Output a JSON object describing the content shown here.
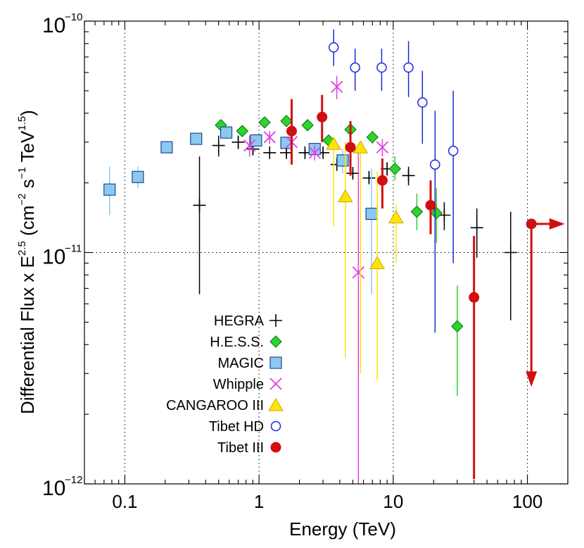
{
  "chart_data": {
    "type": "scatter",
    "xlabel": "Energy (TeV)",
    "ylabel_parts": {
      "main": "Differential Flux x E",
      "exp_main": "2.5",
      "unit_open": " (cm",
      "exp_cm": "−2",
      "s": " s",
      "exp_s": "−1",
      "tev": "  TeV",
      "exp_tev": "1.5",
      "close": ")"
    },
    "x_scale": "log",
    "y_scale": "log",
    "xlim": [
      0.05,
      200
    ],
    "ylim": [
      1e-12,
      1e-10
    ],
    "x_ticks": [
      {
        "value": 0.1,
        "label": "0.1"
      },
      {
        "value": 1,
        "label": "1"
      },
      {
        "value": 10,
        "label": "10"
      },
      {
        "value": 100,
        "label": "100"
      }
    ],
    "y_ticks": [
      {
        "value": 1e-12,
        "base": "10",
        "exp": "−12"
      },
      {
        "value": 1e-11,
        "base": "10",
        "exp": "−11"
      },
      {
        "value": 1e-10,
        "base": "10",
        "exp": "−10"
      }
    ],
    "grid": "dotted at decades",
    "legend_position": "lower-left",
    "series": [
      {
        "name": "HEGRA",
        "marker": "plus",
        "color": "#000000",
        "points": [
          {
            "x": 0.36,
            "y": 1.6e-11,
            "ylo": 6.6e-12,
            "yhi": 2.6e-11
          },
          {
            "x": 0.5,
            "y": 2.9e-11,
            "ylo": 2.6e-11,
            "yhi": 3.2e-11
          },
          {
            "x": 0.7,
            "y": 3e-11,
            "ylo": 2.8e-11,
            "yhi": 3.2e-11
          },
          {
            "x": 0.9,
            "y": 2.8e-11,
            "ylo": 2.65e-11,
            "yhi": 2.95e-11
          },
          {
            "x": 1.2,
            "y": 2.7e-11,
            "ylo": 2.6e-11,
            "yhi": 2.8e-11
          },
          {
            "x": 1.6,
            "y": 2.7e-11,
            "ylo": 2.6e-11,
            "yhi": 2.8e-11
          },
          {
            "x": 2.2,
            "y": 2.7e-11,
            "ylo": 2.6e-11,
            "yhi": 2.8e-11
          },
          {
            "x": 3.0,
            "y": 2.7e-11,
            "ylo": 2.6e-11,
            "yhi": 2.8e-11
          },
          {
            "x": 3.8,
            "y": 2.4e-11,
            "ylo": 2.3e-11,
            "yhi": 2.5e-11
          },
          {
            "x": 5.0,
            "y": 2.2e-11,
            "ylo": 2.1e-11,
            "yhi": 2.3e-11
          },
          {
            "x": 6.6,
            "y": 2.1e-11,
            "ylo": 2e-11,
            "yhi": 2.25e-11
          },
          {
            "x": 9.0,
            "y": 2.3e-11,
            "ylo": 2.15e-11,
            "yhi": 2.45e-11
          },
          {
            "x": 13.0,
            "y": 2.15e-11,
            "ylo": 1.95e-11,
            "yhi": 2.35e-11
          },
          {
            "x": 24.0,
            "y": 1.45e-11,
            "ylo": 1.25e-11,
            "yhi": 1.65e-11
          },
          {
            "x": 42.0,
            "y": 1.28e-11,
            "ylo": 9.5e-12,
            "yhi": 1.55e-11
          },
          {
            "x": 75.0,
            "y": 1e-11,
            "ylo": 5.1e-12,
            "yhi": 1.5e-11
          }
        ]
      },
      {
        "name": "H.E.S.S.",
        "marker": "diamond",
        "color": "#2ad62a",
        "points": [
          {
            "x": 0.52,
            "y": 3.55e-11
          },
          {
            "x": 0.75,
            "y": 3.35e-11
          },
          {
            "x": 1.1,
            "y": 3.65e-11
          },
          {
            "x": 1.6,
            "y": 3.7e-11
          },
          {
            "x": 2.3,
            "y": 3.55e-11
          },
          {
            "x": 3.3,
            "y": 3.05e-11
          },
          {
            "x": 4.8,
            "y": 3.4e-11
          },
          {
            "x": 7.0,
            "y": 3.15e-11,
            "ylo": 2.95e-11,
            "yhi": 3.35e-11
          },
          {
            "x": 10.3,
            "y": 2.3e-11,
            "ylo": 2.05e-11,
            "yhi": 2.6e-11
          },
          {
            "x": 15.0,
            "y": 1.5e-11,
            "ylo": 1.25e-11,
            "yhi": 1.8e-11
          },
          {
            "x": 21.0,
            "y": 1.48e-11,
            "ylo": 1.1e-11,
            "yhi": 1.9e-11
          },
          {
            "x": 30.0,
            "y": 4.8e-12,
            "ylo": 2.4e-12,
            "yhi": 7.2e-12
          }
        ]
      },
      {
        "name": "MAGIC",
        "marker": "square",
        "color": "#8cc8f0",
        "points": [
          {
            "x": 0.077,
            "y": 1.87e-11,
            "ylo": 1.45e-11,
            "yhi": 2.35e-11
          },
          {
            "x": 0.125,
            "y": 2.12e-11,
            "ylo": 1.9e-11,
            "yhi": 2.35e-11
          },
          {
            "x": 0.205,
            "y": 2.85e-11
          },
          {
            "x": 0.34,
            "y": 3.1e-11
          },
          {
            "x": 0.57,
            "y": 3.3e-11
          },
          {
            "x": 0.95,
            "y": 3.05e-11
          },
          {
            "x": 1.6,
            "y": 2.98e-11
          },
          {
            "x": 2.6,
            "y": 2.8e-11
          },
          {
            "x": 4.2,
            "y": 2.5e-11,
            "ylo": 2.2e-11,
            "yhi": 2.8e-11
          },
          {
            "x": 6.9,
            "y": 1.47e-11,
            "ylo": 6.6e-12,
            "yhi": 2.3e-11
          }
        ]
      },
      {
        "name": "Whipple",
        "marker": "cross",
        "color": "#e040e0",
        "points": [
          {
            "x": 0.85,
            "y": 2.9e-11,
            "ylo": 2.6e-11,
            "yhi": 3.2e-11
          },
          {
            "x": 1.2,
            "y": 3.15e-11,
            "ylo": 2.95e-11,
            "yhi": 3.35e-11
          },
          {
            "x": 1.75,
            "y": 3e-11,
            "ylo": 2.8e-11,
            "yhi": 3.2e-11
          },
          {
            "x": 2.6,
            "y": 2.7e-11,
            "ylo": 2.5e-11,
            "yhi": 2.9e-11
          },
          {
            "x": 3.8,
            "y": 5.2e-11,
            "ylo": 4.6e-11,
            "yhi": 5.8e-11
          },
          {
            "x": 5.5,
            "y": 8.2e-12,
            "ylo": 1e-12,
            "yhi": 2.7e-11
          },
          {
            "x": 8.3,
            "y": 2.85e-11,
            "ylo": 2.6e-11,
            "yhi": 3.1e-11
          }
        ]
      },
      {
        "name": "CANGAROO III",
        "marker": "triangle",
        "color": "#ffe400",
        "points": [
          {
            "x": 3.6,
            "y": 2.95e-11,
            "ylo": 1.3e-11,
            "yhi": 3.1e-11
          },
          {
            "x": 4.4,
            "y": 1.75e-11,
            "ylo": 3.5e-12,
            "yhi": 3e-11
          },
          {
            "x": 5.7,
            "y": 2.85e-11,
            "ylo": 3e-12,
            "yhi": 3e-11
          },
          {
            "x": 7.6,
            "y": 9e-12,
            "ylo": 2.8e-12,
            "yhi": 2.25e-11
          },
          {
            "x": 10.5,
            "y": 1.42e-11,
            "ylo": 9e-12,
            "yhi": 1.6e-11
          }
        ]
      },
      {
        "name": "Tibet HD",
        "marker": "circle-open",
        "color": "#1a2ad8",
        "points": [
          {
            "x": 3.6,
            "y": 7.7e-11,
            "ylo": 6.4e-11,
            "yhi": 9.2e-11
          },
          {
            "x": 5.2,
            "y": 6.3e-11,
            "ylo": 5e-11,
            "yhi": 7.6e-11
          },
          {
            "x": 8.2,
            "y": 6.3e-11,
            "ylo": 5e-11,
            "yhi": 7.6e-11
          },
          {
            "x": 13.0,
            "y": 6.3e-11,
            "ylo": 4.7e-11,
            "yhi": 8.2e-11
          },
          {
            "x": 16.5,
            "y": 4.45e-11,
            "ylo": 2.95e-11,
            "yhi": 6.1e-11
          },
          {
            "x": 20.5,
            "y": 2.4e-11,
            "ylo": 4.5e-12,
            "yhi": 4.1e-11
          },
          {
            "x": 28.0,
            "y": 2.75e-11,
            "ylo": 9e-12,
            "yhi": 5e-11
          }
        ]
      },
      {
        "name": "Tibet III",
        "marker": "circle-filled",
        "color": "#d01010",
        "points": [
          {
            "x": 1.75,
            "y": 3.35e-11,
            "ylo": 2.4e-11,
            "yhi": 4.6e-11
          },
          {
            "x": 2.95,
            "y": 3.85e-11,
            "ylo": 3e-11,
            "yhi": 4.8e-11
          },
          {
            "x": 4.8,
            "y": 2.85e-11,
            "ylo": 2.15e-11,
            "yhi": 3.7e-11
          },
          {
            "x": 8.3,
            "y": 2.05e-11,
            "ylo": 1.55e-11,
            "yhi": 2.55e-11
          },
          {
            "x": 19.0,
            "y": 1.6e-11,
            "ylo": 1.2e-11,
            "yhi": 2.05e-11
          },
          {
            "x": 40.0,
            "y": 6.4e-12,
            "ylo": 1.05e-12,
            "yhi": 1.18e-11
          },
          {
            "x": 107.0,
            "y": 1.33e-11,
            "upper_limit": true
          }
        ]
      }
    ]
  }
}
